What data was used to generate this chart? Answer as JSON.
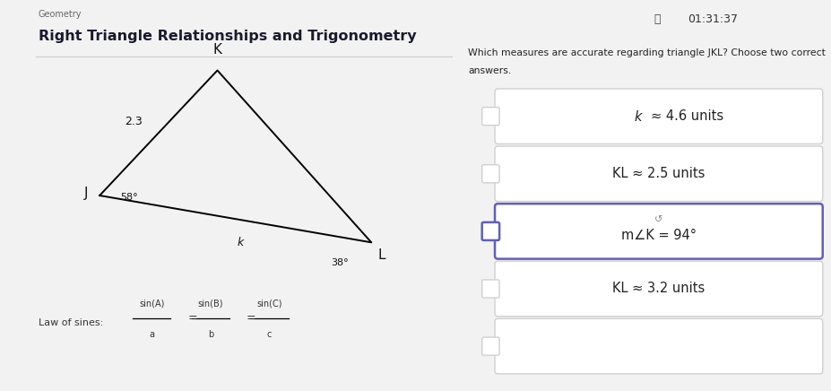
{
  "title": "Right Triangle Relationships and Trigonometry",
  "subtitle": "Geometry",
  "timer": "01:31:37",
  "bg_color": "#f2f2f2",
  "panel_bg": "#f8f8f8",
  "triangle_vertices": {
    "J": [
      0.22,
      0.5
    ],
    "K": [
      0.48,
      0.82
    ],
    "L": [
      0.82,
      0.38
    ]
  },
  "angle_J": "58°",
  "angle_L": "38°",
  "side_JK_label": "2.3",
  "side_JL_label": "k",
  "law_label": "Law of sines:",
  "law_formula_parts": [
    {
      "num": "sin(A)",
      "den": "a"
    },
    {
      "num": "sin(B)",
      "den": "b"
    },
    {
      "num": "sin(C)",
      "den": "c"
    }
  ],
  "question_line1": "Which measures are accurate regarding triangle JKL? Choose two correct",
  "question_line2": "answers.",
  "options": [
    {
      "text": "k ≈ 4.6 units",
      "has_italic_k": true,
      "highlighted": false
    },
    {
      "text": "KL ≈ 2.5 units",
      "has_italic_k": false,
      "highlighted": false
    },
    {
      "text": "m∠K = 94°",
      "has_italic_k": false,
      "highlighted": true
    },
    {
      "text": "KL ≈ 3.2 units",
      "has_italic_k": false,
      "highlighted": false
    },
    {
      "text": "",
      "has_italic_k": false,
      "highlighted": false
    }
  ],
  "option_box_color": "#d0d0d0",
  "option_highlight_color": "#6060bb",
  "checkbox_size": 0.038,
  "title_color": "#1a1a2e",
  "subtitle_color": "#666666",
  "text_color": "#222222",
  "timer_color": "#333333"
}
